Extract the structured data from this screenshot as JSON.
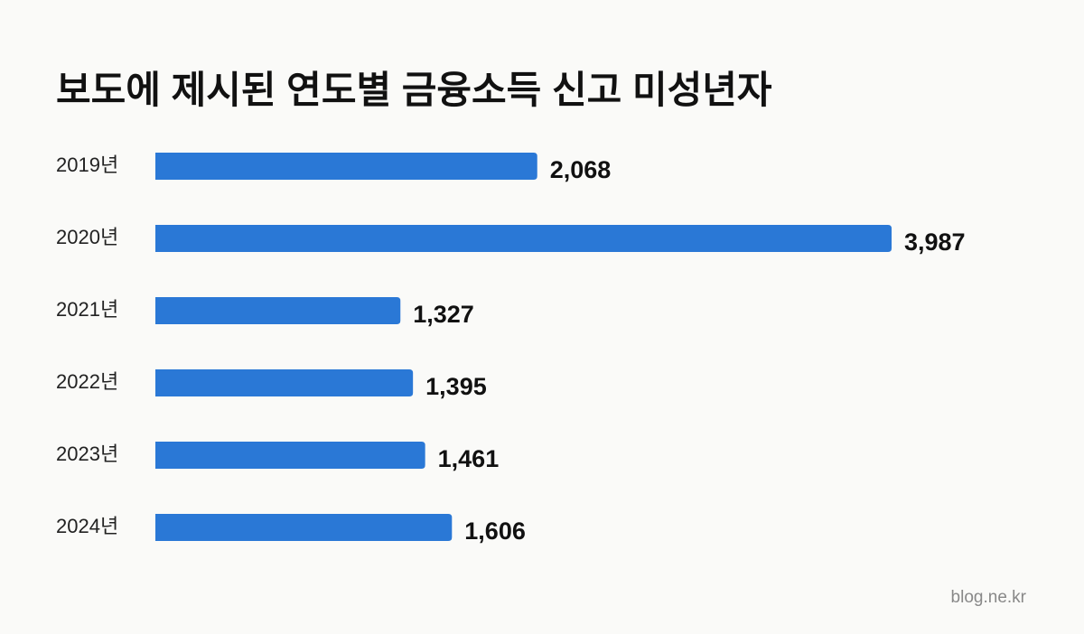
{
  "chart_data": {
    "type": "bar",
    "orientation": "horizontal",
    "title": "보도에 제시된 연도별 금융소득 신고 미성년자",
    "categories": [
      "2019년",
      "2020년",
      "2021년",
      "2022년",
      "2023년",
      "2024년"
    ],
    "values": [
      2068,
      3987,
      1327,
      1395,
      1461,
      1606
    ],
    "value_labels": [
      "2,068",
      "3,987",
      "1,327",
      "1,395",
      "1,461",
      "1,606"
    ],
    "color": "#2a78d6",
    "source": "blog.ne.kr"
  }
}
